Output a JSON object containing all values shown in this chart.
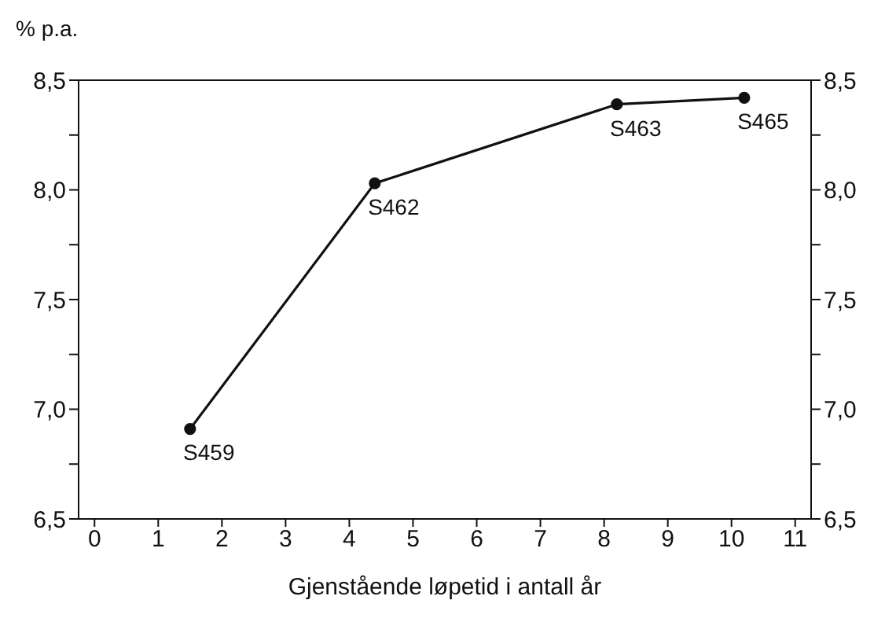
{
  "chart_data": {
    "type": "line",
    "ylabel": "% p.a.",
    "xlabel": "Gjenstående løpetid i antall år",
    "x": [
      1.5,
      4.4,
      8.2,
      10.2
    ],
    "series": [
      {
        "color": "#111111",
        "values": [
          6.91,
          8.03,
          8.39,
          8.42
        ]
      }
    ],
    "marker": "circle",
    "line_style": "solid",
    "xlim": [
      -0.25,
      11.25
    ],
    "xticks": [
      0,
      1,
      2,
      3,
      4,
      5,
      6,
      7,
      8,
      9,
      10,
      11
    ],
    "ylim": [
      6.5,
      8.5
    ],
    "yticks": [
      {
        "value": 6.5,
        "label": "6,5"
      },
      {
        "value": 6.75,
        "label": null
      },
      {
        "value": 7,
        "label": "7,0"
      },
      {
        "value": 7.25,
        "label": null
      },
      {
        "value": 7.5,
        "label": "7,5"
      },
      {
        "value": 7.75,
        "label": null
      },
      {
        "value": 8,
        "label": "8,0"
      },
      {
        "value": 8.25,
        "label": null
      },
      {
        "value": 8.5,
        "label": "8,5"
      }
    ],
    "y2lim": [
      6.5,
      8.5
    ],
    "y2ticks": [
      {
        "value": 6.5,
        "label": "6,5"
      },
      {
        "value": 6.75,
        "label": null
      },
      {
        "value": 7,
        "label": "7,0"
      },
      {
        "value": 7.25,
        "label": null
      },
      {
        "value": 7.5,
        "label": "7,5"
      },
      {
        "value": 7.75,
        "label": null
      },
      {
        "value": 8,
        "label": "8,0"
      },
      {
        "value": 8.25,
        "label": null
      },
      {
        "value": 8.5,
        "label": "8,5"
      }
    ],
    "annotations": [
      {
        "text": "S459",
        "x": 1.5,
        "y": 6.91
      },
      {
        "text": "S462",
        "x": 4.4,
        "y": 8.03
      },
      {
        "text": "S463",
        "x": 8.2,
        "y": 8.39
      },
      {
        "text": "S465",
        "x": 10.2,
        "y": 8.42
      }
    ]
  }
}
